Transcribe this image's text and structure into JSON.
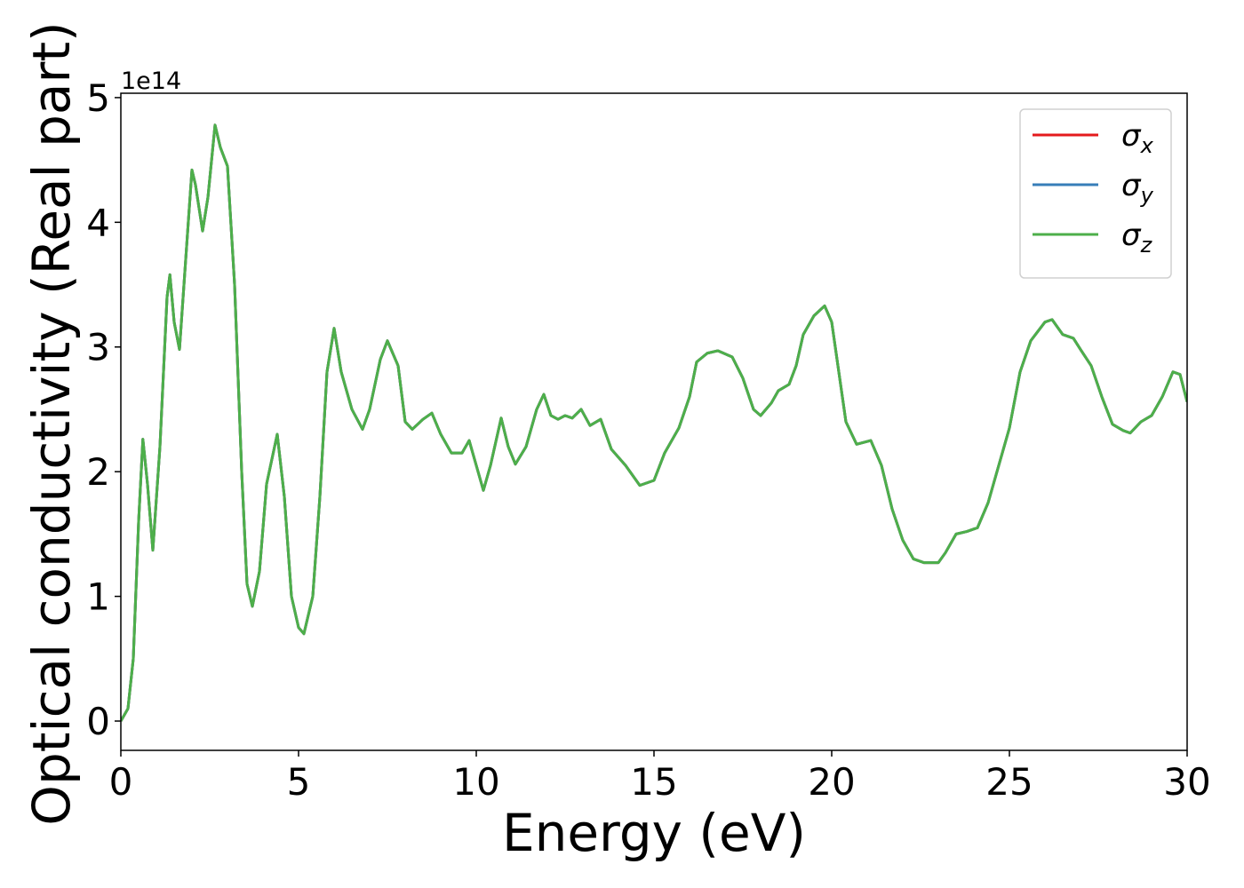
{
  "chart_data": {
    "type": "line",
    "xlabel": "Energy (eV)",
    "ylabel": "Optical conductivity (Real part)",
    "y_offset_label": "1e14",
    "xlim": [
      0,
      30
    ],
    "xticks": [
      0,
      5,
      10,
      15,
      20,
      25,
      30
    ],
    "ylim": [
      -0.235,
      5.035
    ],
    "yticks": [
      0,
      1,
      2,
      3,
      4,
      5
    ],
    "legend": "upper right",
    "x": [
      0,
      0.2,
      0.35,
      0.5,
      0.62,
      0.75,
      0.9,
      1.1,
      1.3,
      1.38,
      1.5,
      1.65,
      1.8,
      2.0,
      2.1,
      2.3,
      2.45,
      2.65,
      2.8,
      3.0,
      3.2,
      3.4,
      3.55,
      3.7,
      3.9,
      4.1,
      4.4,
      4.6,
      4.8,
      5.0,
      5.15,
      5.4,
      5.6,
      5.8,
      6.0,
      6.2,
      6.5,
      6.8,
      7.0,
      7.3,
      7.5,
      7.8,
      8.0,
      8.2,
      8.5,
      8.75,
      9.0,
      9.3,
      9.6,
      9.8,
      10.0,
      10.2,
      10.4,
      10.7,
      10.9,
      11.1,
      11.4,
      11.7,
      11.9,
      12.1,
      12.3,
      12.5,
      12.7,
      12.95,
      13.2,
      13.5,
      13.8,
      14.2,
      14.6,
      15.0,
      15.3,
      15.7,
      16.0,
      16.2,
      16.5,
      16.8,
      17.2,
      17.5,
      17.8,
      18.0,
      18.3,
      18.5,
      18.8,
      19.0,
      19.2,
      19.5,
      19.8,
      20.0,
      20.2,
      20.4,
      20.7,
      21.1,
      21.4,
      21.7,
      22.0,
      22.3,
      22.6,
      23.0,
      23.2,
      23.5,
      23.8,
      24.1,
      24.4,
      24.7,
      25.0,
      25.3,
      25.6,
      26.0,
      26.2,
      26.5,
      26.8,
      27.0,
      27.3,
      27.6,
      27.9,
      28.2,
      28.4,
      28.7,
      29.0,
      29.3,
      29.6,
      29.8,
      30.0
    ],
    "series": [
      {
        "name": "σx",
        "color": "#e41a1c",
        "values": [
          0,
          0.1,
          0.5,
          1.6,
          2.26,
          1.9,
          1.37,
          2.2,
          3.4,
          3.58,
          3.2,
          2.98,
          3.6,
          4.42,
          4.3,
          3.93,
          4.2,
          4.78,
          4.6,
          4.45,
          3.5,
          2.0,
          1.1,
          0.92,
          1.2,
          1.9,
          2.3,
          1.8,
          1.0,
          0.75,
          0.7,
          1.0,
          1.8,
          2.8,
          3.15,
          2.8,
          2.5,
          2.34,
          2.5,
          2.9,
          3.05,
          2.85,
          2.4,
          2.34,
          2.42,
          2.47,
          2.3,
          2.15,
          2.15,
          2.25,
          2.05,
          1.85,
          2.05,
          2.43,
          2.2,
          2.06,
          2.2,
          2.5,
          2.62,
          2.45,
          2.42,
          2.45,
          2.43,
          2.5,
          2.37,
          2.42,
          2.18,
          2.05,
          1.89,
          1.93,
          2.15,
          2.35,
          2.6,
          2.88,
          2.95,
          2.97,
          2.92,
          2.75,
          2.5,
          2.45,
          2.55,
          2.65,
          2.7,
          2.85,
          3.1,
          3.25,
          3.33,
          3.2,
          2.8,
          2.4,
          2.22,
          2.25,
          2.05,
          1.7,
          1.45,
          1.3,
          1.27,
          1.27,
          1.35,
          1.5,
          1.52,
          1.55,
          1.75,
          2.05,
          2.35,
          2.8,
          3.05,
          3.2,
          3.22,
          3.1,
          3.07,
          2.98,
          2.85,
          2.6,
          2.38,
          2.33,
          2.31,
          2.4,
          2.45,
          2.6,
          2.8,
          2.78,
          2.56
        ]
      },
      {
        "name": "σy",
        "color": "#377eb8",
        "values": [
          0,
          0.1,
          0.5,
          1.6,
          2.26,
          1.9,
          1.37,
          2.2,
          3.4,
          3.58,
          3.2,
          2.98,
          3.6,
          4.42,
          4.3,
          3.93,
          4.2,
          4.78,
          4.6,
          4.45,
          3.5,
          2.0,
          1.1,
          0.92,
          1.2,
          1.9,
          2.3,
          1.8,
          1.0,
          0.75,
          0.7,
          1.0,
          1.8,
          2.8,
          3.15,
          2.8,
          2.5,
          2.34,
          2.5,
          2.9,
          3.05,
          2.85,
          2.4,
          2.34,
          2.42,
          2.47,
          2.3,
          2.15,
          2.15,
          2.25,
          2.05,
          1.85,
          2.05,
          2.43,
          2.2,
          2.06,
          2.2,
          2.5,
          2.62,
          2.45,
          2.42,
          2.45,
          2.43,
          2.5,
          2.37,
          2.42,
          2.18,
          2.05,
          1.89,
          1.93,
          2.15,
          2.35,
          2.6,
          2.88,
          2.95,
          2.97,
          2.92,
          2.75,
          2.5,
          2.45,
          2.55,
          2.65,
          2.7,
          2.85,
          3.1,
          3.25,
          3.33,
          3.2,
          2.8,
          2.4,
          2.22,
          2.25,
          2.05,
          1.7,
          1.45,
          1.3,
          1.27,
          1.27,
          1.35,
          1.5,
          1.52,
          1.55,
          1.75,
          2.05,
          2.35,
          2.8,
          3.05,
          3.2,
          3.22,
          3.1,
          3.07,
          2.98,
          2.85,
          2.6,
          2.38,
          2.33,
          2.31,
          2.4,
          2.45,
          2.6,
          2.8,
          2.78,
          2.56
        ]
      },
      {
        "name": "σz",
        "color": "#4daf4a",
        "values": [
          0,
          0.1,
          0.5,
          1.6,
          2.26,
          1.9,
          1.37,
          2.2,
          3.4,
          3.58,
          3.2,
          2.98,
          3.6,
          4.42,
          4.3,
          3.93,
          4.2,
          4.78,
          4.6,
          4.45,
          3.5,
          2.0,
          1.1,
          0.92,
          1.2,
          1.9,
          2.3,
          1.8,
          1.0,
          0.75,
          0.7,
          1.0,
          1.8,
          2.8,
          3.15,
          2.8,
          2.5,
          2.34,
          2.5,
          2.9,
          3.05,
          2.85,
          2.4,
          2.34,
          2.42,
          2.47,
          2.3,
          2.15,
          2.15,
          2.25,
          2.05,
          1.85,
          2.05,
          2.43,
          2.2,
          2.06,
          2.2,
          2.5,
          2.62,
          2.45,
          2.42,
          2.45,
          2.43,
          2.5,
          2.37,
          2.42,
          2.18,
          2.05,
          1.89,
          1.93,
          2.15,
          2.35,
          2.6,
          2.88,
          2.95,
          2.97,
          2.92,
          2.75,
          2.5,
          2.45,
          2.55,
          2.65,
          2.7,
          2.85,
          3.1,
          3.25,
          3.33,
          3.2,
          2.8,
          2.4,
          2.22,
          2.25,
          2.05,
          1.7,
          1.45,
          1.3,
          1.27,
          1.27,
          1.35,
          1.5,
          1.52,
          1.55,
          1.75,
          2.05,
          2.35,
          2.8,
          3.05,
          3.2,
          3.22,
          3.1,
          3.07,
          2.98,
          2.85,
          2.6,
          2.38,
          2.33,
          2.31,
          2.4,
          2.45,
          2.6,
          2.8,
          2.78,
          2.56
        ]
      }
    ]
  }
}
